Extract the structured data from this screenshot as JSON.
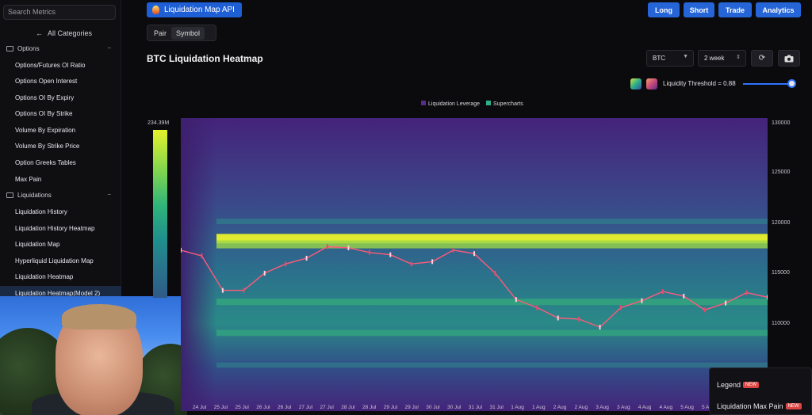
{
  "sidebar": {
    "search_placeholder": "Search Metrics",
    "all_categories": "All Categories",
    "back_arrow": "←",
    "sections": [
      {
        "label": "Options",
        "icon": "folder-icon",
        "collapse": "−"
      },
      {
        "label": "Liquidations",
        "icon": "folder-icon",
        "collapse": "−"
      }
    ],
    "options_items": [
      "Options/Futures OI Ratio",
      "Options Open Interest",
      "Options OI By Expiry",
      "Options OI By Strike",
      "Volume By Expiration",
      "Volume By Strike Price",
      "Option Greeks Tables",
      "Max Pain"
    ],
    "liquidation_items": [
      "Liquidation History",
      "Liquidation History Heatmap",
      "Liquidation Map",
      "Hyperliquid Liquidation Map",
      "Liquidation Heatmap",
      "Liquidation Heatmap(Model 2)"
    ],
    "active_item": "Liquidation Heatmap(Model 2)"
  },
  "header": {
    "api_button": "Liquidation Map API",
    "buttons": [
      "Long",
      "Short",
      "Trade",
      "Analytics"
    ],
    "toggle": [
      "Pair",
      "Symbol"
    ],
    "toggle_active": "Symbol"
  },
  "chart_header": {
    "title": "BTC Liquidation Heatmap",
    "symbol_select": "BTC",
    "range_select": "2 week",
    "refresh_icon": "refresh-icon",
    "camera_icon": "camera-icon",
    "threshold_label": "Liquidity Threshold = 0.88",
    "threshold_value": 0.88
  },
  "colors": {
    "accent": "#2565d8",
    "legend_leverage": "#5b2a8a",
    "legend_supercharts": "#2bb08a"
  },
  "chart_data": {
    "type": "heatmap",
    "title": "BTC Liquidation Heatmap",
    "legend": [
      "Liquidation Leverage",
      "Supercharts"
    ],
    "colorbar_max_label": "234.39M",
    "y_ticks": [
      "130000",
      "125000",
      "120000",
      "115000",
      "110000"
    ],
    "ylim": [
      105000,
      130500
    ],
    "x_ticks": [
      "24 Jul",
      "25 Jul",
      "25 Jul",
      "26 Jul",
      "26 Jul",
      "27 Jul",
      "27 Jul",
      "28 Jul",
      "28 Jul",
      "29 Jul",
      "29 Jul",
      "30 Jul",
      "30 Jul",
      "31 Jul",
      "31 Jul",
      "1 Aug",
      "1 Aug",
      "2 Aug",
      "2 Aug",
      "3 Aug",
      "3 Aug",
      "4 Aug",
      "4 Aug",
      "5 Aug",
      "5 Aug"
    ],
    "price_series": [
      {
        "t": 0,
        "price": 119000
      },
      {
        "t": 1,
        "price": 118500
      },
      {
        "t": 2,
        "price": 115500
      },
      {
        "t": 3,
        "price": 115500
      },
      {
        "t": 4,
        "price": 117000
      },
      {
        "t": 5,
        "price": 117800
      },
      {
        "t": 6,
        "price": 118300
      },
      {
        "t": 7,
        "price": 119300
      },
      {
        "t": 8,
        "price": 119200
      },
      {
        "t": 9,
        "price": 118800
      },
      {
        "t": 10,
        "price": 118600
      },
      {
        "t": 11,
        "price": 117800
      },
      {
        "t": 12,
        "price": 118000
      },
      {
        "t": 13,
        "price": 119000
      },
      {
        "t": 14,
        "price": 118700
      },
      {
        "t": 15,
        "price": 117000
      },
      {
        "t": 16,
        "price": 114700
      },
      {
        "t": 17,
        "price": 114000
      },
      {
        "t": 18,
        "price": 113100
      },
      {
        "t": 19,
        "price": 113000
      },
      {
        "t": 20,
        "price": 112300
      },
      {
        "t": 21,
        "price": 114000
      },
      {
        "t": 22,
        "price": 114600
      },
      {
        "t": 23,
        "price": 115400
      },
      {
        "t": 24,
        "price": 115000
      },
      {
        "t": 25,
        "price": 113800
      },
      {
        "t": 26,
        "price": 114400
      },
      {
        "t": 27,
        "price": 115300
      },
      {
        "t": 28,
        "price": 114900
      }
    ],
    "liquidity_bands": [
      {
        "price": 120000,
        "intensity": 1.0
      },
      {
        "price": 119500,
        "intensity": 0.75
      },
      {
        "price": 121500,
        "intensity": 0.35
      },
      {
        "price": 114500,
        "intensity": 0.5
      },
      {
        "price": 111800,
        "intensity": 0.45
      },
      {
        "price": 109000,
        "intensity": 0.3
      }
    ]
  },
  "bottom_panel": {
    "items": [
      {
        "label": "Legend",
        "badge": "NEW"
      },
      {
        "label": "Liquidation Max Pain",
        "badge": "NEW"
      }
    ]
  }
}
